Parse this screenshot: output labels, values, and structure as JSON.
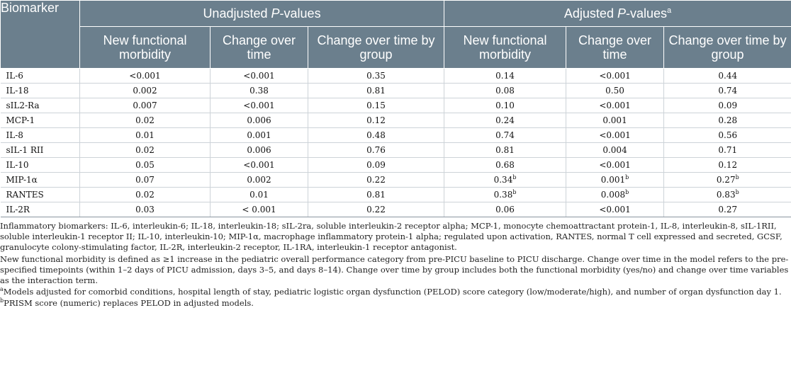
{
  "table": {
    "header": {
      "biomarker": "Biomarker",
      "unadjusted": "Unadjusted",
      "adjusted": "Adjusted",
      "p": "P",
      "pvalues_suffix": "-values",
      "adjusted_sup": "a",
      "subcolumns": [
        "New functional morbidity",
        "Change over time",
        "Change over time by group",
        "New functional morbidity",
        "Change over time",
        "Change over time by group"
      ]
    },
    "rows": [
      {
        "name": "IL-6",
        "u1": "<0.001",
        "u2": "<0.001",
        "u3": "0.35",
        "a1": "0.14",
        "a1s": "",
        "a2": "<0.001",
        "a2s": "",
        "a3": "0.44",
        "a3s": ""
      },
      {
        "name": "IL-18",
        "u1": "0.002",
        "u2": "0.38",
        "u3": "0.81",
        "a1": "0.08",
        "a1s": "",
        "a2": "0.50",
        "a2s": "",
        "a3": "0.74",
        "a3s": ""
      },
      {
        "name": "sIL2-Ra",
        "u1": "0.007",
        "u2": "<0.001",
        "u3": "0.15",
        "a1": "0.10",
        "a1s": "",
        "a2": "<0.001",
        "a2s": "",
        "a3": "0.09",
        "a3s": ""
      },
      {
        "name": "MCP-1",
        "u1": "0.02",
        "u2": "0.006",
        "u3": "0.12",
        "a1": "0.24",
        "a1s": "",
        "a2": "0.001",
        "a2s": "",
        "a3": "0.28",
        "a3s": ""
      },
      {
        "name": "IL-8",
        "u1": "0.01",
        "u2": "0.001",
        "u3": "0.48",
        "a1": "0.74",
        "a1s": "",
        "a2": "<0.001",
        "a2s": "",
        "a3": "0.56",
        "a3s": ""
      },
      {
        "name": "sIL-1 RII",
        "u1": "0.02",
        "u2": "0.006",
        "u3": "0.76",
        "a1": "0.81",
        "a1s": "",
        "a2": "0.004",
        "a2s": "",
        "a3": "0.71",
        "a3s": ""
      },
      {
        "name": "IL-10",
        "u1": "0.05",
        "u2": "<0.001",
        "u3": "0.09",
        "a1": "0.68",
        "a1s": "",
        "a2": "<0.001",
        "a2s": "",
        "a3": "0.12",
        "a3s": ""
      },
      {
        "name": "MIP-1α",
        "u1": "0.07",
        "u2": "0.002",
        "u3": "0.22",
        "a1": "0.34",
        "a1s": "b",
        "a2": "0.001",
        "a2s": "b",
        "a3": "0.27",
        "a3s": "b"
      },
      {
        "name": "RANTES",
        "u1": "0.02",
        "u2": "0.01",
        "u3": "0.81",
        "a1": "0.38",
        "a1s": "b",
        "a2": "0.008",
        "a2s": "b",
        "a3": "0.83",
        "a3s": "b"
      },
      {
        "name": "IL-2R",
        "u1": "0.03",
        "u2": "< 0.001",
        "u3": "0.22",
        "a1": "0.06",
        "a1s": "",
        "a2": "<0.001",
        "a2s": "",
        "a3": "0.27",
        "a3s": ""
      }
    ]
  },
  "notes": {
    "abbreviations": "Inflammatory biomarkers: IL-6, interleukin-6; IL-18, interleukin-18; sIL-2ra, soluble interleukin-2 receptor alpha; MCP-1, monocyte chemoattractant protein-1, IL-8, interleukin-8, sIL-1RII, soluble interleukin-1 receptor II; IL-10, interleukin-10; MIP-1α, macrophage inflammatory protein-1 alpha; regulated upon activation, RANTES, normal T cell expressed and secreted, GCSF, granulocyte colony-stimulating factor, IL-2R, interleukin-2 receptor, IL-1RA, interleukin-1 receptor antagonist.",
    "definition": "New functional morbidity is defined as ≥1 increase in the pediatric overall performance category from pre-PICU baseline to PICU discharge. Change over time in the model refers to the pre-specified timepoints (within 1–2 days of PICU admission, days 3–5, and days 8–14). Change over time by group includes both the functional morbidity (yes/no) and change over time variables as the interaction term.",
    "fn_a_mark": "a",
    "fn_a": "Models adjusted for comorbid conditions, hospital length of stay, pediatric logistic organ dysfunction (PELOD) score category (low/moderate/high), and number of organ dysfunction day 1.",
    "fn_b_mark": "b",
    "fn_b": "PRISM score (numeric) replaces PELOD in adjusted models."
  }
}
